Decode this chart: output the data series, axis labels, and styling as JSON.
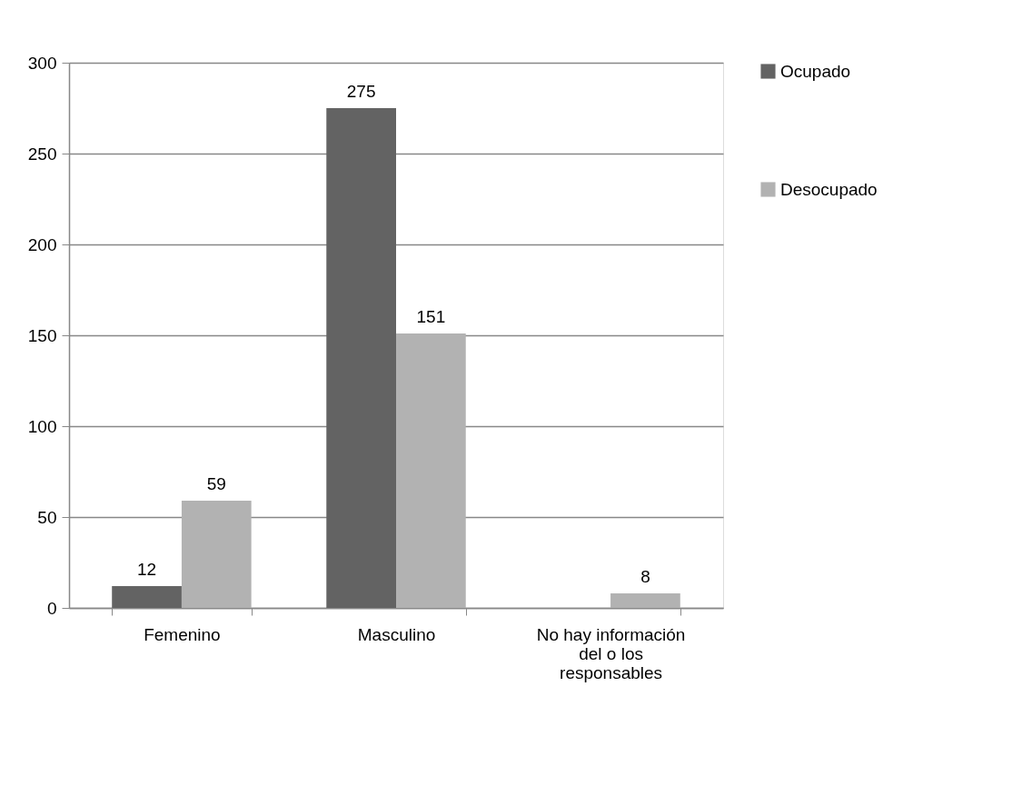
{
  "chart_data": {
    "type": "bar",
    "categories": [
      "Femenino",
      "Masculino",
      "No hay información del o los responsables"
    ],
    "series": [
      {
        "name": "Ocupado",
        "color": "#636363",
        "values": [
          12,
          275,
          null
        ]
      },
      {
        "name": "Desocupado",
        "color": "#b2b2b2",
        "values": [
          59,
          151,
          8
        ]
      }
    ],
    "ylim": [
      0,
      300
    ],
    "yticks": [
      0,
      50,
      100,
      150,
      200,
      250,
      300
    ],
    "grid": "y",
    "legend": "right",
    "data_labels": true
  }
}
